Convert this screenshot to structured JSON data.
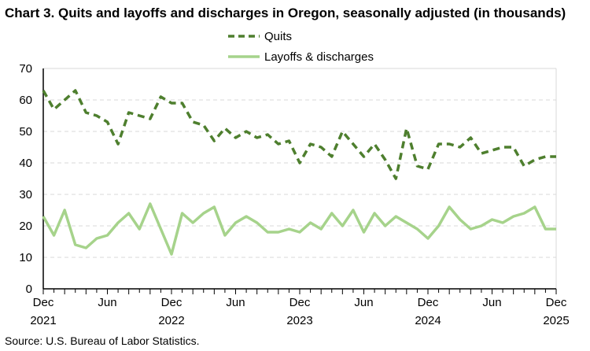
{
  "chart_data": {
    "type": "line",
    "title": "Chart 3. Quits and layoffs and discharges in Oregon, seasonally adjusted (in thousands)",
    "source": "Source: U.S. Bureau of Labor Statistics.",
    "x_start": "Dec 2021",
    "x_end": "Dec 2025",
    "x_ticks": [
      {
        "month": "Dec",
        "year": "2021",
        "index": 0
      },
      {
        "month": "Jun",
        "year": "",
        "index": 6
      },
      {
        "month": "Dec",
        "year": "2022",
        "index": 12
      },
      {
        "month": "Jun",
        "year": "",
        "index": 18
      },
      {
        "month": "Dec",
        "year": "2023",
        "index": 24
      },
      {
        "month": "Jun",
        "year": "",
        "index": 30
      },
      {
        "month": "Dec",
        "year": "2024",
        "index": 36
      },
      {
        "month": "Jun",
        "year": "",
        "index": 42
      },
      {
        "month": "Dec",
        "year": "2025",
        "index": 48
      }
    ],
    "ylim": [
      0,
      70
    ],
    "y_ticks": [
      0,
      10,
      20,
      30,
      40,
      50,
      60,
      70
    ],
    "grid": "horizontal dashed",
    "legend_placement": "top-center",
    "series": [
      {
        "name": "Quits",
        "color": "#4e7f2e",
        "style": "dashed",
        "values": [
          63,
          57,
          60,
          63,
          56,
          55,
          53,
          46,
          56,
          55,
          54,
          61,
          59,
          59,
          53,
          52,
          47,
          51,
          48,
          50,
          48,
          49,
          46,
          47,
          40,
          46,
          45,
          42,
          50,
          46,
          42,
          46,
          41,
          35,
          51,
          39,
          38,
          46,
          46,
          45,
          48,
          43,
          44,
          45,
          45,
          39,
          41,
          42,
          42
        ]
      },
      {
        "name": "Layoffs & discharges",
        "color": "#a6d38b",
        "style": "solid",
        "values": [
          23,
          17,
          25,
          14,
          13,
          16,
          17,
          21,
          24,
          19,
          27,
          19,
          11,
          24,
          21,
          24,
          26,
          17,
          21,
          23,
          21,
          18,
          18,
          19,
          18,
          21,
          19,
          24,
          20,
          25,
          18,
          24,
          20,
          23,
          21,
          19,
          16,
          20,
          26,
          22,
          19,
          20,
          22,
          21,
          23,
          24,
          26,
          19,
          19
        ]
      }
    ]
  }
}
